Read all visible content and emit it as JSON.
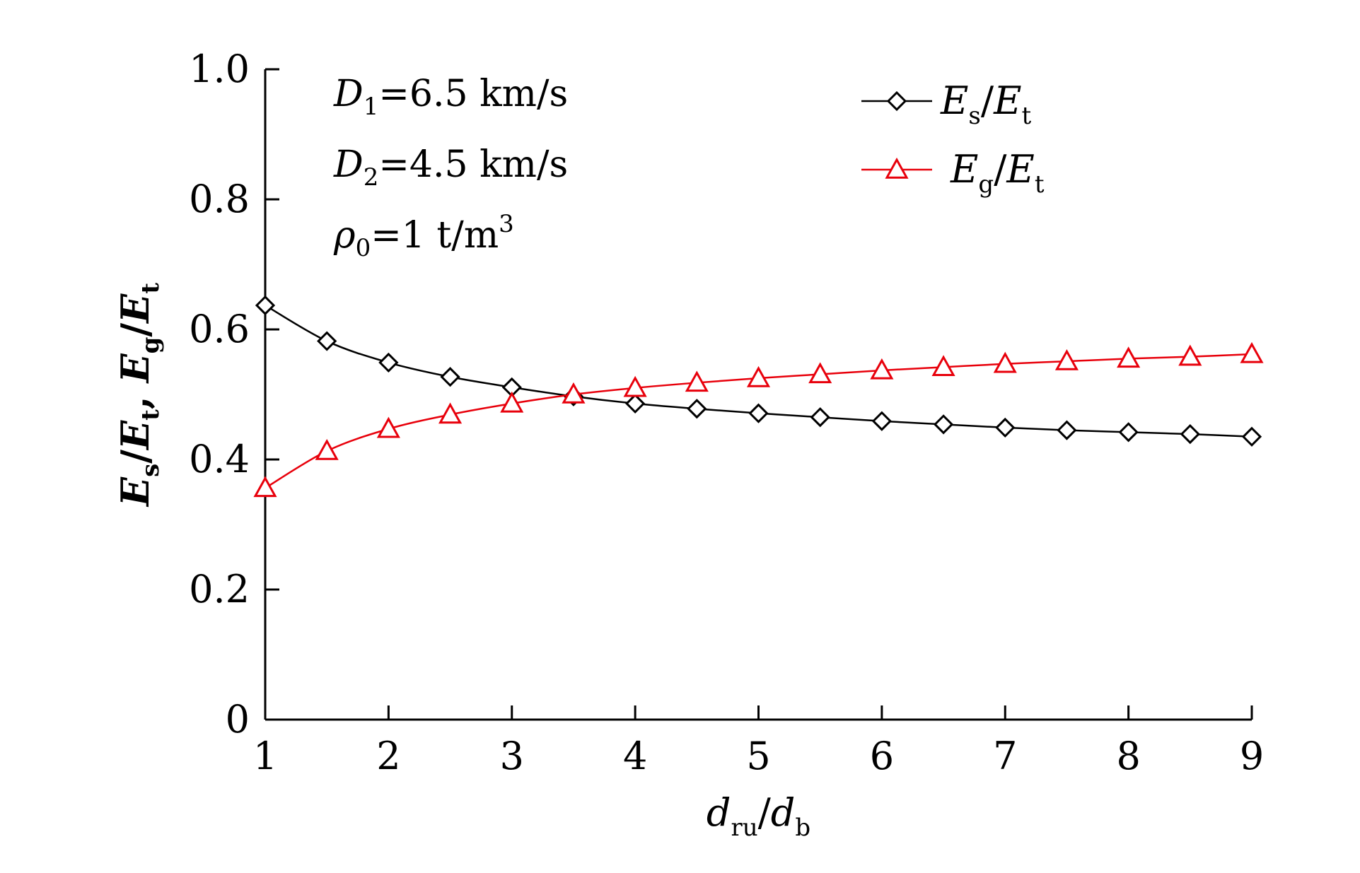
{
  "chart_data": {
    "type": "line",
    "xlabel": {
      "base1": "d",
      "sub1": "ru",
      "sep": "/",
      "base2": "d",
      "sub2": "b"
    },
    "ylabel": {
      "parts": [
        {
          "text": "E",
          "italic": true
        },
        {
          "text": "s",
          "sub": true
        },
        {
          "text": "/",
          "italic": false
        },
        {
          "text": "E",
          "italic": true
        },
        {
          "text": "t",
          "sub": true
        },
        {
          "text": ", ",
          "italic": false
        },
        {
          "text": "E",
          "italic": true
        },
        {
          "text": "g",
          "sub": true
        },
        {
          "text": "/",
          "italic": false
        },
        {
          "text": "E",
          "italic": true
        },
        {
          "text": "t",
          "sub": true
        }
      ]
    },
    "xlim": [
      1,
      9
    ],
    "ylim": [
      0,
      1.0
    ],
    "x_ticks": [
      "1",
      "2",
      "3",
      "4",
      "5",
      "6",
      "7",
      "8",
      "9"
    ],
    "y_ticks": [
      "0",
      "0.2",
      "0.4",
      "0.6",
      "0.8",
      "1.0"
    ],
    "grid": false,
    "legend_position": "top-right",
    "series": [
      {
        "name": "Es/Et",
        "legend": {
          "base1": "E",
          "sub1": "s",
          "sep": "/",
          "base2": "E",
          "sub2": "t"
        },
        "color": "#000000",
        "marker": "diamond",
        "x": [
          1,
          1.5,
          2,
          2.5,
          3,
          3.5,
          4,
          4.5,
          5,
          5.5,
          6,
          6.5,
          7,
          7.5,
          8,
          8.5,
          9
        ],
        "values": [
          0.637,
          0.582,
          0.549,
          0.527,
          0.511,
          0.497,
          0.486,
          0.478,
          0.471,
          0.465,
          0.459,
          0.454,
          0.449,
          0.445,
          0.442,
          0.439,
          0.435
        ]
      },
      {
        "name": "Eg/Et",
        "legend": {
          "base1": "E",
          "sub1": "g",
          "sep": "/",
          "base2": "E",
          "sub2": "t"
        },
        "color": "#e8000b",
        "marker": "triangle",
        "x": [
          1,
          1.5,
          2,
          2.5,
          3,
          3.5,
          4,
          4.5,
          5,
          5.5,
          6,
          6.5,
          7,
          7.5,
          8,
          8.5,
          9
        ],
        "values": [
          0.356,
          0.413,
          0.447,
          0.469,
          0.486,
          0.5,
          0.51,
          0.518,
          0.525,
          0.531,
          0.537,
          0.542,
          0.547,
          0.551,
          0.555,
          0.558,
          0.562
        ]
      }
    ],
    "annotations": [
      {
        "sym": "D",
        "sub": "1",
        "rest": "=6.5 km/s",
        "sup": ""
      },
      {
        "sym": "D",
        "sub": "2",
        "rest": "=4.5 km/s",
        "sup": ""
      },
      {
        "sym": "ρ",
        "sub": "0",
        "rest": "=1 t/m",
        "sup": "3"
      }
    ]
  }
}
